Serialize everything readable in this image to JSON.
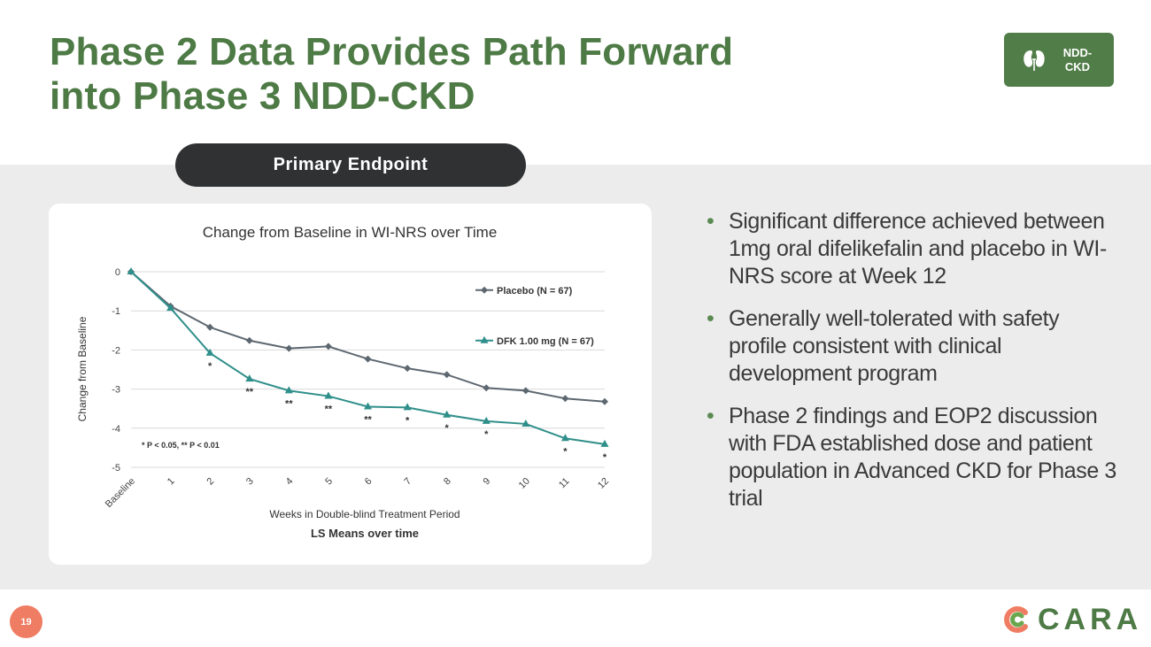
{
  "slide": {
    "title_line1": "Phase 2 Data Provides Path Forward",
    "title_line2": "into Phase 3 NDD-CKD",
    "badge_label_line1": "NDD-",
    "badge_label_line2": "CKD",
    "section_pill": "Primary Endpoint",
    "page_number": "19",
    "logo_text": "CARA",
    "accent_color": "#4d7a45",
    "page_badge_color": "#ef7d63"
  },
  "bullets": [
    "Significant difference achieved between 1mg oral difelikefalin and placebo in WI-NRS score at Week 12",
    "Generally well-tolerated with safety profile consistent with clinical development program",
    "Phase 2 findings and EOP2 discussion with FDA established dose and patient population in Advanced CKD for Phase 3 trial"
  ],
  "chart_data": {
    "type": "line",
    "title": "Change from Baseline in WI-NRS over Time",
    "xlabel": "Weeks in Double-blind Treatment Period",
    "subtitle": "LS Means over time",
    "ylabel": "Change from Baseline",
    "categories": [
      "Baseline",
      "1",
      "2",
      "3",
      "4",
      "5",
      "6",
      "7",
      "8",
      "9",
      "10",
      "11",
      "12"
    ],
    "ylim": [
      -5,
      0
    ],
    "yticks": [
      "0",
      "-1",
      "-2",
      "-3",
      "-4",
      "-5"
    ],
    "grid": true,
    "legend_position": "right",
    "series": [
      {
        "name": "Placebo (N = 67)",
        "color": "#5d6770",
        "marker": "diamond",
        "values": [
          0,
          -0.88,
          -1.42,
          -1.76,
          -1.96,
          -1.91,
          -2.23,
          -2.47,
          -2.63,
          -2.97,
          -3.04,
          -3.24,
          -3.32
        ]
      },
      {
        "name": "DFK 1.00 mg (N = 67)",
        "color": "#2f8f8a",
        "marker": "triangle",
        "values": [
          0,
          -0.93,
          -2.08,
          -2.74,
          -3.04,
          -3.18,
          -3.45,
          -3.47,
          -3.66,
          -3.82,
          -3.89,
          -4.26,
          -4.41
        ]
      }
    ],
    "significance": [
      "",
      "",
      "*",
      "**",
      "**",
      "**",
      "**",
      "*",
      "*",
      "*",
      "",
      "*",
      "*"
    ],
    "footnote": "* P < 0.05, ** P < 0.01"
  }
}
